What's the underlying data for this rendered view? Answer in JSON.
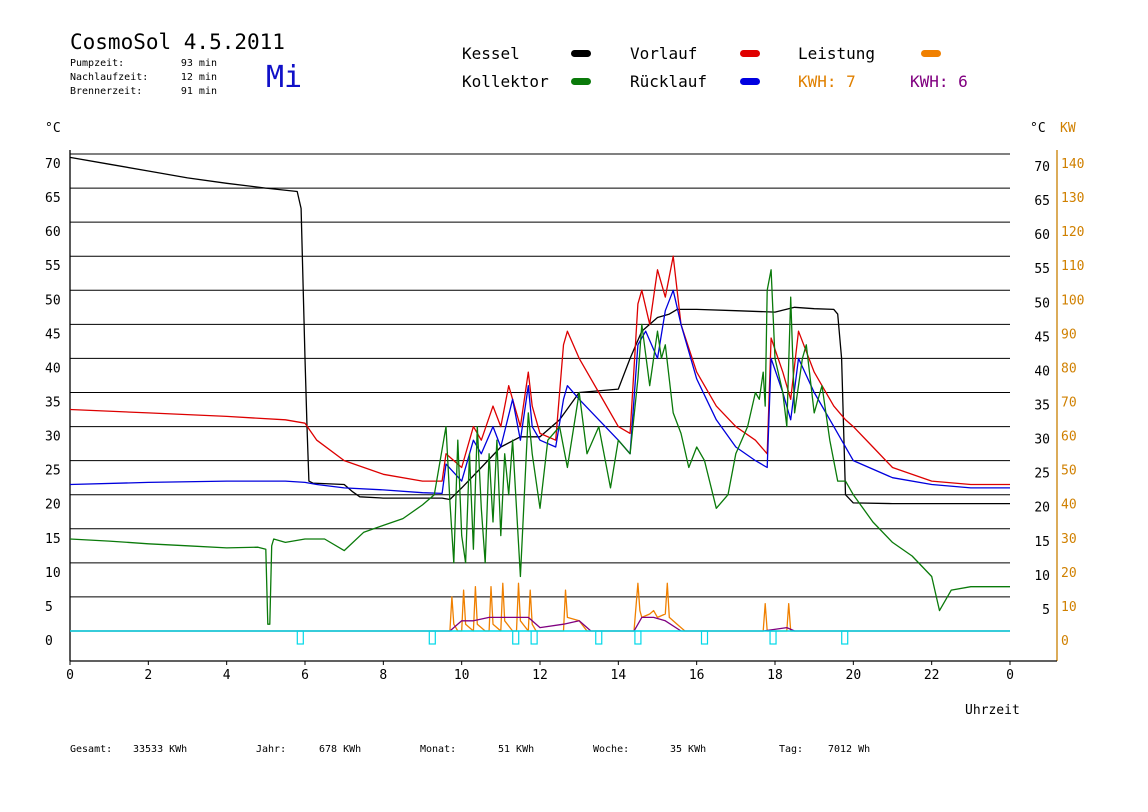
{
  "header": {
    "title": "CosmoSol 4.5.2011",
    "day": "Mi",
    "stats": [
      {
        "label": "Pumpzeit:",
        "value": "93 min"
      },
      {
        "label": "Nachlaufzeit:",
        "value": "12 min"
      },
      {
        "label": "Brennerzeit:",
        "value": "91 min"
      }
    ]
  },
  "legend": {
    "kessel": {
      "label": "Kessel",
      "color": "#000000"
    },
    "kollektor": {
      "label": "Kollektor",
      "color": "#0a7a0a"
    },
    "vorlauf": {
      "label": "Vorlauf",
      "color": "#e00000"
    },
    "ruecklauf": {
      "label": "Rücklauf",
      "color": "#0000e0"
    },
    "leistung": {
      "label": "Leistung",
      "color": "#f08000"
    },
    "kwh_orange": {
      "label": "KWH: 7",
      "color": "#e08000"
    },
    "kwh_purple": {
      "label": "KWH: 6",
      "color": "#800080"
    }
  },
  "axes": {
    "left_unit": "°C",
    "right_unit_c": "°C",
    "right_unit_kw": "KW",
    "x_label": "Uhrzeit"
  },
  "footer": [
    {
      "label": "Gesamt:",
      "value": "33533 KWh"
    },
    {
      "label": "Jahr:",
      "value": "678 KWh"
    },
    {
      "label": "Monat:",
      "value": "51 KWh"
    },
    {
      "label": "Woche:",
      "value": "35 KWh"
    },
    {
      "label": "Tag:",
      "value": "7012 Wh"
    }
  ],
  "chart_data": {
    "type": "line",
    "title": "CosmoSol 4.5.2011",
    "xlabel": "Uhrzeit",
    "ylabel": "°C",
    "xlim": [
      0,
      24
    ],
    "ylim": [
      0,
      70
    ],
    "y2lim": [
      0,
      140
    ],
    "x_ticks": [
      "0",
      "2",
      "4",
      "6",
      "8",
      "10",
      "12",
      "14",
      "16",
      "18",
      "20",
      "22",
      "0"
    ],
    "y_ticks": [
      "0",
      "5",
      "10",
      "15",
      "20",
      "25",
      "30",
      "35",
      "40",
      "45",
      "50",
      "55",
      "60",
      "65",
      "70"
    ],
    "y_right_ticks": [
      "70",
      "65",
      "60",
      "55",
      "50",
      "45",
      "40",
      "35",
      "30",
      "25",
      "20",
      "15",
      "10",
      "5"
    ],
    "y2_ticks": [
      "0",
      "10",
      "20",
      "30",
      "40",
      "50",
      "60",
      "70",
      "80",
      "90",
      "100",
      "110",
      "120",
      "130",
      "140"
    ],
    "grid": true,
    "series": [
      {
        "name": "Kessel",
        "color": "#000000",
        "x": [
          0,
          1,
          2,
          3,
          4,
          5,
          5.8,
          5.9,
          6.0,
          6.05,
          6.1,
          6.2,
          7.0,
          7.2,
          7.4,
          8.0,
          9.0,
          9.5,
          9.7,
          10.0,
          10.5,
          11.0,
          11.5,
          12.0,
          12.5,
          13.0,
          14.0,
          14.3,
          14.6,
          15.0,
          15.3,
          15.5,
          16.0,
          17.0,
          18.0,
          18.5,
          19.0,
          19.5,
          19.6,
          19.7,
          19.8,
          20.0,
          21.0,
          22.0,
          23.0,
          24.0
        ],
        "y": [
          69.5,
          68.5,
          67.5,
          66.5,
          65.7,
          65,
          64.5,
          62,
          40,
          30,
          22,
          21.7,
          21.5,
          20.5,
          19.7,
          19.5,
          19.5,
          19.5,
          19.3,
          21,
          24,
          27,
          28.5,
          28.5,
          31,
          35,
          35.5,
          40,
          44,
          46,
          46.5,
          47.2,
          47.2,
          47,
          46.8,
          47.5,
          47.3,
          47.2,
          46.5,
          40,
          20,
          18.8,
          18.7,
          18.7,
          18.7,
          18.7
        ]
      },
      {
        "name": "Vorlauf",
        "color": "#dd0000",
        "x": [
          0,
          2,
          4,
          5.5,
          6.0,
          6.3,
          7.0,
          8.0,
          9.0,
          9.5,
          9.6,
          10.0,
          10.3,
          10.5,
          10.8,
          11.0,
          11.2,
          11.5,
          11.7,
          11.8,
          12.0,
          12.4,
          12.6,
          12.7,
          13.0,
          13.5,
          14.0,
          14.3,
          14.5,
          14.6,
          14.8,
          15.0,
          15.2,
          15.4,
          15.6,
          16.0,
          16.5,
          17.0,
          17.5,
          17.8,
          17.9,
          18.2,
          18.4,
          18.6,
          19.0,
          19.5,
          19.8,
          20.0,
          20.5,
          21.0,
          22.0,
          23.0,
          24.0
        ],
        "y": [
          32.5,
          32,
          31.5,
          31,
          30.5,
          28,
          25,
          23,
          22,
          22,
          26,
          24,
          30,
          28,
          33,
          30,
          36,
          30,
          38,
          33,
          29,
          28,
          42,
          44,
          40,
          35,
          30,
          29,
          48,
          50,
          45,
          53,
          49,
          55,
          45,
          38,
          33,
          30,
          28,
          26,
          43,
          38,
          34,
          44,
          38,
          33,
          31,
          30,
          27,
          24,
          22,
          21.5,
          21.5
        ]
      },
      {
        "name": "Rücklauf",
        "color": "#0000dd",
        "x": [
          0,
          2,
          4,
          5.5,
          6.0,
          6.3,
          7.0,
          8.0,
          9.0,
          9.5,
          9.6,
          10.0,
          10.3,
          10.5,
          10.8,
          11.0,
          11.3,
          11.5,
          11.7,
          11.8,
          12.0,
          12.4,
          12.6,
          12.7,
          13.0,
          13.5,
          14.0,
          14.3,
          14.5,
          14.7,
          15.0,
          15.2,
          15.4,
          15.6,
          16.0,
          16.5,
          17.0,
          17.5,
          17.8,
          17.9,
          18.2,
          18.4,
          18.6,
          19.0,
          19.5,
          20.0,
          21.0,
          22.0,
          23.0,
          24.0
        ],
        "y": [
          21.5,
          21.8,
          22.0,
          22.0,
          21.8,
          21.5,
          21.0,
          20.7,
          20.3,
          20.2,
          24.5,
          22,
          28,
          26,
          30,
          27,
          34,
          28,
          36,
          30,
          28,
          27,
          34,
          36,
          34,
          31,
          28,
          26,
          42,
          44,
          40,
          47,
          50,
          45,
          37,
          31,
          27,
          25,
          24,
          40,
          35,
          31,
          40,
          35,
          30,
          25,
          22.5,
          21.5,
          21,
          21
        ]
      },
      {
        "name": "Kollektor",
        "color": "#0a7a0a",
        "x": [
          0,
          1,
          2,
          3,
          4,
          4.8,
          5.0,
          5.05,
          5.1,
          5.15,
          5.2,
          5.5,
          6.0,
          6.5,
          7.0,
          7.5,
          8.0,
          8.5,
          9.0,
          9.3,
          9.6,
          9.7,
          9.8,
          9.9,
          10.0,
          10.1,
          10.2,
          10.3,
          10.4,
          10.5,
          10.6,
          10.7,
          10.8,
          10.9,
          11.0,
          11.1,
          11.2,
          11.3,
          11.5,
          11.7,
          11.8,
          12.0,
          12.2,
          12.5,
          12.7,
          13.0,
          13.2,
          13.5,
          13.8,
          14.0,
          14.3,
          14.5,
          14.6,
          14.8,
          15.0,
          15.1,
          15.2,
          15.4,
          15.6,
          15.8,
          16.0,
          16.2,
          16.5,
          16.8,
          17.0,
          17.3,
          17.5,
          17.6,
          17.7,
          17.75,
          17.8,
          17.9,
          18.0,
          18.2,
          18.3,
          18.4,
          18.5,
          18.7,
          18.8,
          19.0,
          19.2,
          19.4,
          19.6,
          19.8,
          20.0,
          20.5,
          21.0,
          21.5,
          22.0,
          22.2,
          22.5,
          23.0,
          23.5,
          24.0
        ],
        "y": [
          13.5,
          13.2,
          12.8,
          12.5,
          12.2,
          12.3,
          12.0,
          1,
          1,
          12.5,
          13.5,
          13.0,
          13.5,
          13.5,
          11.8,
          14.5,
          15.5,
          16.5,
          18.5,
          20,
          30,
          19,
          10,
          28,
          14,
          10,
          26,
          12,
          30,
          18,
          10,
          26,
          16,
          28,
          14,
          26,
          20,
          28,
          8,
          32,
          26,
          18,
          28,
          30,
          24,
          35,
          26,
          30,
          21,
          28,
          26,
          37,
          45,
          36,
          44,
          40,
          42,
          32,
          29,
          24,
          27,
          25,
          18,
          20,
          26,
          30,
          35,
          34,
          38,
          33,
          50,
          53,
          40,
          35,
          30,
          49,
          32,
          40,
          42,
          32,
          36,
          28,
          22,
          22,
          20,
          16,
          13,
          11,
          8,
          3,
          6,
          6.5,
          6.5,
          6.5
        ]
      },
      {
        "name": "Leistung",
        "color": "#f08000",
        "x": [
          0,
          9.7,
          9.75,
          9.8,
          9.9,
          10.0,
          10.05,
          10.1,
          10.3,
          10.35,
          10.4,
          10.6,
          10.7,
          10.75,
          10.8,
          11.0,
          11.05,
          11.1,
          11.3,
          11.4,
          11.45,
          11.5,
          11.7,
          11.75,
          11.8,
          11.9,
          12.5,
          12.6,
          12.65,
          12.7,
          13.0,
          13.2,
          14.2,
          14.4,
          14.5,
          14.55,
          14.6,
          14.8,
          14.9,
          15.0,
          15.2,
          15.25,
          15.3,
          15.5,
          15.7,
          17.6,
          17.7,
          17.75,
          17.8,
          18.2,
          18.3,
          18.35,
          18.4,
          18.6,
          24.0
        ],
        "y": [
          0,
          0,
          5,
          1,
          0,
          0,
          6,
          1,
          0,
          6.5,
          1,
          0,
          0,
          6.5,
          1,
          0,
          7,
          1.5,
          0,
          0,
          7,
          1.5,
          0,
          6,
          1,
          0,
          0,
          0,
          6,
          2,
          1.5,
          0,
          0,
          0,
          7,
          3,
          2,
          2.5,
          3,
          2,
          2.5,
          7,
          2,
          1,
          0,
          0,
          0,
          4,
          0,
          0,
          0,
          4,
          0,
          0,
          0
        ]
      },
      {
        "name": "KWH",
        "color": "#800080",
        "x": [
          0,
          9.7,
          10.0,
          10.3,
          10.7,
          11.0,
          11.4,
          11.7,
          12.0,
          12.6,
          13.0,
          13.3,
          14.4,
          14.6,
          14.9,
          15.2,
          15.6,
          17.7,
          18.3,
          18.5,
          24.0
        ],
        "y": [
          0,
          0,
          1.5,
          1.5,
          2,
          2,
          2,
          2,
          0.5,
          1,
          1.5,
          0,
          0,
          2,
          2,
          1.5,
          0,
          0,
          0.5,
          0,
          0
        ]
      }
    ],
    "pump_markers_x": [
      5.88,
      9.25,
      11.38,
      11.85,
      13.5,
      14.5,
      16.2,
      17.95,
      19.78
    ]
  }
}
